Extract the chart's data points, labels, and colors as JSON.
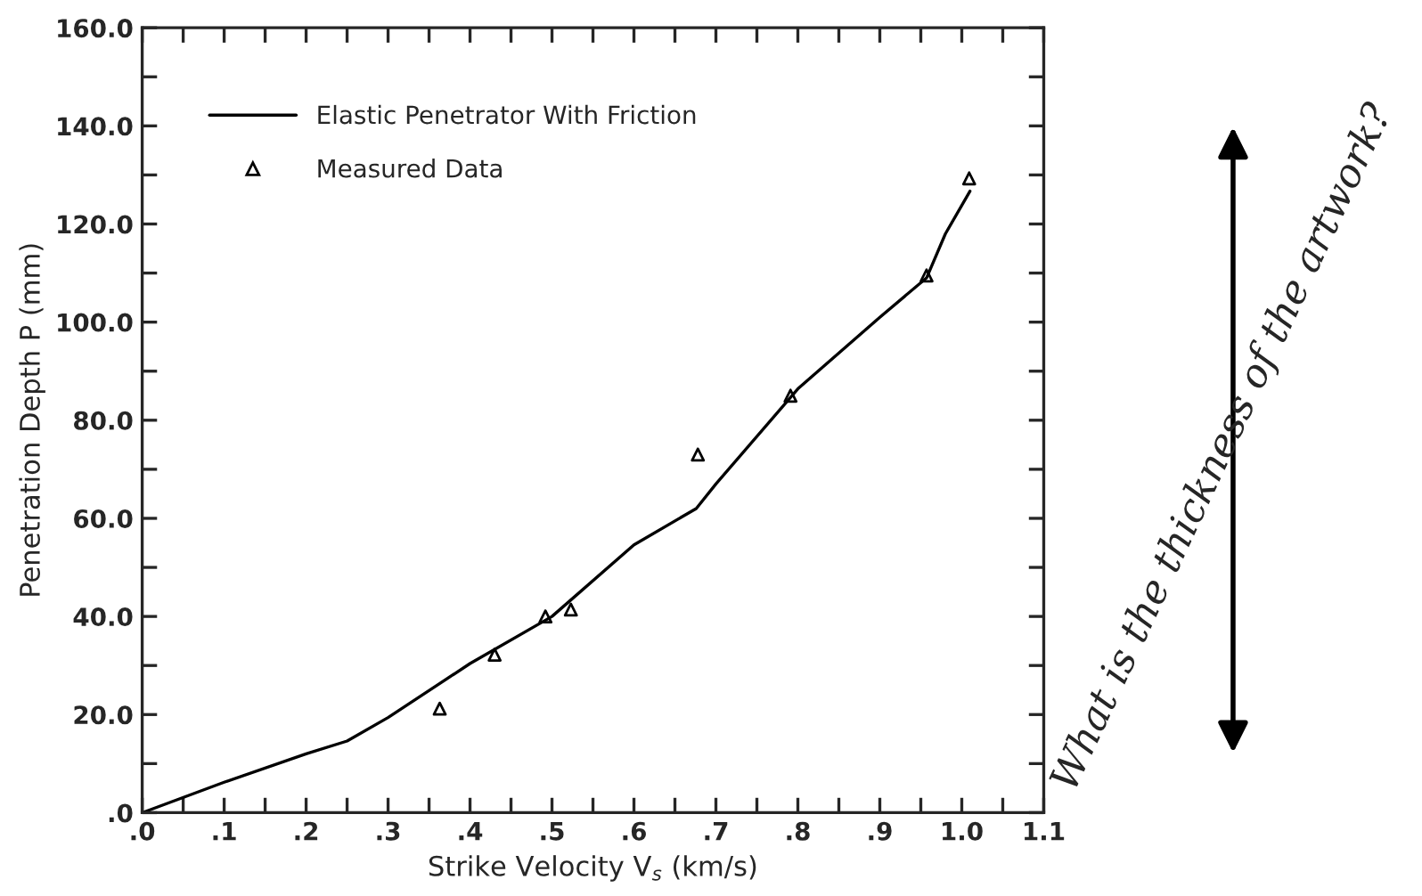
{
  "chart_data": {
    "type": "line",
    "xlabel": "Strike Velocity V$_{s}$ (km/s)",
    "ylabel": "Penetration Depth P (mm)",
    "series": [
      {
        "name": "Elastic Penetrator With Friction",
        "color": "#000000",
        "marker": "none",
        "line_style": "solid",
        "x": [
          0,
          0.1,
          0.2,
          0.25,
          0.3,
          0.4,
          0.5,
          0.6,
          0.676,
          0.7,
          0.8,
          0.9,
          0.957,
          0.98,
          1.01
        ],
        "values": [
          0,
          6.2,
          12,
          14.6,
          19.4,
          30.4,
          40,
          54.6,
          62,
          67,
          86.4,
          101,
          109,
          118,
          126.7
        ]
      },
      {
        "name": "Measured Data",
        "type": "scatter",
        "color": "#000000",
        "marker": "triangle",
        "x": [
          0.363,
          0.43,
          0.492,
          0.523,
          0.678,
          0.791,
          0.957,
          1.009
        ],
        "values": [
          21.2,
          32.2,
          40,
          41.4,
          73,
          85,
          109.5,
          129.3
        ]
      }
    ],
    "xlim": [
      0,
      1.1
    ],
    "xticks": [
      {
        "value": 0,
        "label": ".0"
      },
      {
        "value": 0.05,
        "label": null
      },
      {
        "value": 0.1,
        "label": ".1"
      },
      {
        "value": 0.15,
        "label": null
      },
      {
        "value": 0.2,
        "label": ".2"
      },
      {
        "value": 0.25,
        "label": null
      },
      {
        "value": 0.3,
        "label": ".3"
      },
      {
        "value": 0.35,
        "label": null
      },
      {
        "value": 0.4,
        "label": ".4"
      },
      {
        "value": 0.45,
        "label": null
      },
      {
        "value": 0.5,
        "label": ".5"
      },
      {
        "value": 0.55,
        "label": null
      },
      {
        "value": 0.6,
        "label": ".6"
      },
      {
        "value": 0.65,
        "label": null
      },
      {
        "value": 0.7,
        "label": ".7"
      },
      {
        "value": 0.75,
        "label": null
      },
      {
        "value": 0.8,
        "label": ".8"
      },
      {
        "value": 0.85,
        "label": null
      },
      {
        "value": 0.9,
        "label": ".9"
      },
      {
        "value": 0.95,
        "label": null
      },
      {
        "value": 1.0,
        "label": "1.0"
      },
      {
        "value": 1.05,
        "label": null
      },
      {
        "value": 1.1,
        "label": "1.1"
      }
    ],
    "ylim": [
      0,
      160
    ],
    "yticks": [
      {
        "value": 0,
        "label": ".0"
      },
      {
        "value": 10,
        "label": null
      },
      {
        "value": 20,
        "label": "20.0"
      },
      {
        "value": 30,
        "label": null
      },
      {
        "value": 40,
        "label": "40.0"
      },
      {
        "value": 50,
        "label": null
      },
      {
        "value": 60,
        "label": "60.0"
      },
      {
        "value": 70,
        "label": null
      },
      {
        "value": 80,
        "label": "80.0"
      },
      {
        "value": 90,
        "label": null
      },
      {
        "value": 100,
        "label": "100.0"
      },
      {
        "value": 110,
        "label": null
      },
      {
        "value": 120,
        "label": "120.0"
      },
      {
        "value": 130,
        "label": null
      },
      {
        "value": 140,
        "label": "140.0"
      },
      {
        "value": 150,
        "label": null
      },
      {
        "value": 160,
        "label": "160.0"
      }
    ],
    "grid": false,
    "legend": "top left",
    "annotations": [
      "What is the thickness of the artwork?"
    ]
  }
}
